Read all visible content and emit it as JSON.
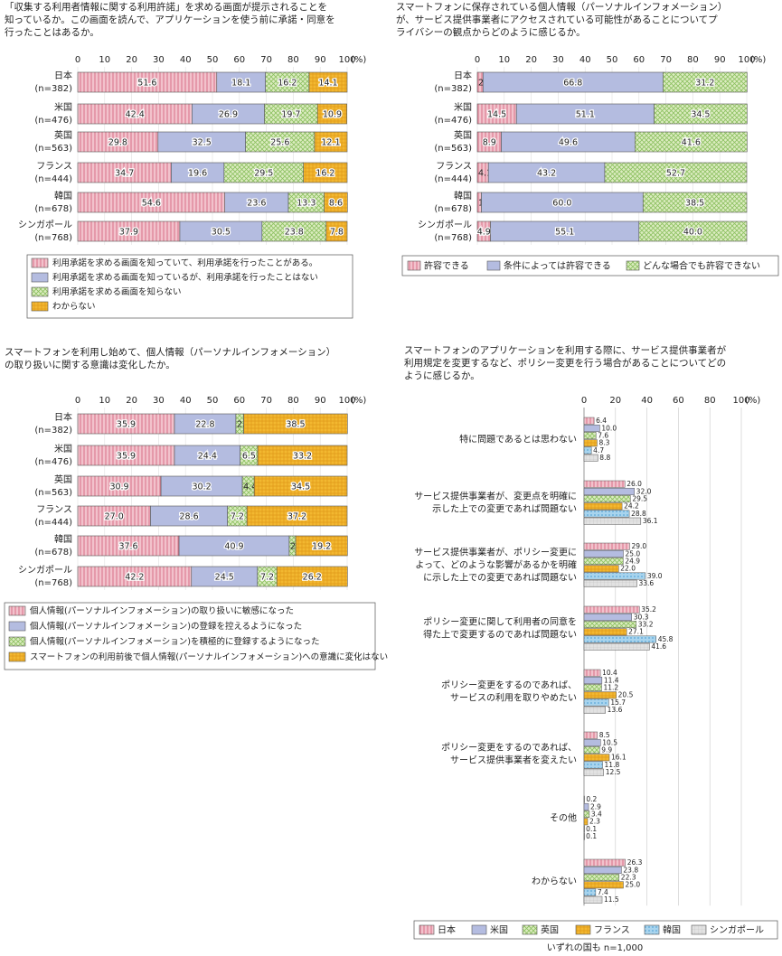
{
  "colors": {
    "pink": "#e8a0b0",
    "blue": "#aab4dc",
    "green": "#c8e0a0",
    "orange": "#f0b030",
    "lightblue": "#90c8e8",
    "gray": "#d4d4d4",
    "border": "#555555"
  },
  "chart_data": [
    {
      "type": "bar",
      "orientation": "horizontal-stacked",
      "title_lines": [
        "「収集する利用者情報に関する利用許諾」を求める画面が提示されることを",
        "知っているか。この画面を読んで、アプリケーションを使う前に承諾・同意を",
        "行ったことはあるか。"
      ],
      "xlim": [
        0,
        100
      ],
      "ticks": [
        "0",
        "10",
        "20",
        "30",
        "40",
        "50",
        "60",
        "70",
        "80",
        "90",
        "100"
      ],
      "unit": "(%)",
      "categories": [
        [
          "日本",
          "(n=382)"
        ],
        [
          "米国",
          "(n=476)"
        ],
        [
          "英国",
          "(n=563)"
        ],
        [
          "フランス",
          "(n=444)"
        ],
        [
          "韓国",
          "(n=678)"
        ],
        [
          "シンガポール",
          "(n=768)"
        ]
      ],
      "series": [
        {
          "name": "利用承諾を求める画面を知っていて、利用承諾を行ったことがある。",
          "color": "pink",
          "values": [
            51.6,
            42.4,
            29.8,
            34.7,
            54.6,
            37.9
          ]
        },
        {
          "name": "利用承諾を求める画面を知っているが、利用承諾を行ったことはない",
          "color": "blue",
          "values": [
            18.1,
            26.9,
            32.5,
            19.6,
            23.6,
            30.5
          ]
        },
        {
          "name": "利用承諾を求める画面を知らない",
          "color": "green",
          "values": [
            16.2,
            19.7,
            25.6,
            29.5,
            13.3,
            23.8
          ]
        },
        {
          "name": "わからない",
          "color": "orange",
          "values": [
            14.1,
            10.9,
            12.1,
            16.2,
            8.6,
            7.8
          ]
        }
      ]
    },
    {
      "type": "bar",
      "orientation": "horizontal-stacked",
      "title_lines": [
        "スマートフォンに保存されている個人情報（パーソナルインフォメーション）",
        "が、サービス提供事業者にアクセスされている可能性があることについてプ",
        "ライバシーの観点からどのように感じるか。"
      ],
      "xlim": [
        0,
        100
      ],
      "ticks": [
        "0",
        "10",
        "20",
        "30",
        "40",
        "50",
        "60",
        "70",
        "80",
        "90",
        "100"
      ],
      "unit": "(%)",
      "categories": [
        [
          "日本",
          "(n=382)"
        ],
        [
          "米国",
          "(n=476)"
        ],
        [
          "英国",
          "(n=563)"
        ],
        [
          "フランス",
          "(n=444)"
        ],
        [
          "韓国",
          "(n=678)"
        ],
        [
          "シンガポール",
          "(n=768)"
        ]
      ],
      "series": [
        {
          "name": "許容できる",
          "color": "pink",
          "values": [
            2.1,
            14.5,
            8.9,
            4.1,
            1.5,
            4.9
          ]
        },
        {
          "name": "条件によっては許容できる",
          "color": "blue",
          "values": [
            66.8,
            51.1,
            49.6,
            43.2,
            60.0,
            55.1
          ]
        },
        {
          "name": "どんな場合でも許容できない",
          "color": "green",
          "values": [
            31.2,
            34.5,
            41.6,
            52.7,
            38.5,
            40.0
          ]
        }
      ]
    },
    {
      "type": "bar",
      "orientation": "horizontal-stacked",
      "title_lines": [
        "スマートフォンを利用し始めて、個人情報（パーソナルインフォメーション）",
        "の取り扱いに関する意識は変化したか。"
      ],
      "xlim": [
        0,
        100
      ],
      "ticks": [
        "0",
        "10",
        "20",
        "30",
        "40",
        "50",
        "60",
        "70",
        "80",
        "90",
        "100"
      ],
      "unit": "(%)",
      "categories": [
        [
          "日本",
          "(n=382)"
        ],
        [
          "米国",
          "(n=476)"
        ],
        [
          "英国",
          "(n=563)"
        ],
        [
          "フランス",
          "(n=444)"
        ],
        [
          "韓国",
          "(n=678)"
        ],
        [
          "シンガポール",
          "(n=768)"
        ]
      ],
      "series": [
        {
          "name": "個人情報(パーソナルインフォメーション)の取り扱いに敏感になった",
          "color": "pink",
          "values": [
            35.9,
            35.9,
            30.9,
            27.0,
            37.6,
            42.2
          ]
        },
        {
          "name": "個人情報(パーソナルインフォメーション)の登録を控えるようになった",
          "color": "blue",
          "values": [
            22.8,
            24.4,
            30.2,
            28.6,
            40.9,
            24.5
          ]
        },
        {
          "name": "個人情報(パーソナルインフォメーション)を積極的に登録するようになった",
          "color": "green",
          "values": [
            2.9,
            6.5,
            4.4,
            7.2,
            2.4,
            7.2
          ]
        },
        {
          "name": "スマートフォンの利用前後で個人情報(パーソナルインフォメーション)への意識に変化はない",
          "color": "orange",
          "values": [
            38.5,
            33.2,
            34.5,
            37.2,
            19.2,
            26.2
          ]
        }
      ]
    },
    {
      "type": "bar",
      "orientation": "horizontal-grouped",
      "title_lines": [
        "スマートフォンのアプリケーションを利用する際に、サービス提供事業者が",
        "利用規定を変更するなど、ポリシー変更を行う場合があることについてどの",
        "ように感じるか。"
      ],
      "xlim": [
        0,
        100
      ],
      "ticks": [
        "0",
        "20",
        "40",
        "60",
        "80",
        "100"
      ],
      "unit": "(%)",
      "categories": [
        [
          "特に問題であるとは思わない"
        ],
        [
          "サービス提供事業者が、変更点を明確に",
          "示した上での変更であれば問題ない"
        ],
        [
          "サービス提供事業者が、ポリシー変更に",
          "よって、どのような影響があるかを明確",
          "に示した上での変更であれば問題ない"
        ],
        [
          "ポリシー変更に関して利用者の同意を",
          "得た上で変更するのであれば問題ない"
        ],
        [
          "ポリシー変更をするのであれば、",
          "サービスの利用を取りやめたい"
        ],
        [
          "ポリシー変更をするのであれば、",
          "サービス提供事業者を変えたい"
        ],
        [
          "その他"
        ],
        [
          "わからない"
        ]
      ],
      "series": [
        {
          "name": "日本",
          "color": "pink",
          "values": [
            6.4,
            26.0,
            29.0,
            35.2,
            10.4,
            8.5,
            0.2,
            26.3
          ]
        },
        {
          "name": "米国",
          "color": "blue",
          "values": [
            10.0,
            32.0,
            25.0,
            30.3,
            11.4,
            10.5,
            2.9,
            23.8
          ]
        },
        {
          "name": "英国",
          "color": "green",
          "values": [
            7.6,
            29.5,
            24.9,
            33.2,
            11.2,
            9.9,
            3.4,
            22.3
          ]
        },
        {
          "name": "フランス",
          "color": "orange",
          "values": [
            8.3,
            24.2,
            22.0,
            27.1,
            20.5,
            16.1,
            2.3,
            25.0
          ]
        },
        {
          "name": "韓国",
          "color": "lightblue",
          "values": [
            4.7,
            28.8,
            39.0,
            45.8,
            15.7,
            11.8,
            0.1,
            7.4
          ]
        },
        {
          "name": "シンガポール",
          "color": "gray",
          "values": [
            8.8,
            36.1,
            33.6,
            41.6,
            13.6,
            12.5,
            0.1,
            11.5
          ]
        }
      ],
      "note": "いずれの国も n=1,000"
    }
  ]
}
